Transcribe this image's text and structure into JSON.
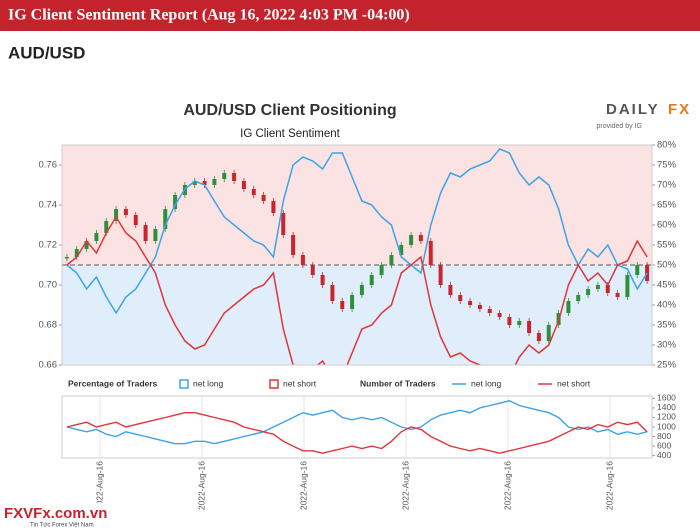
{
  "header": {
    "title": "IG Client Sentiment Report (Aug 16, 2022 4:03 PM -04:00)",
    "pair": "AUD/USD"
  },
  "brand": {
    "logo_a": "DAILY",
    "logo_b": "FX",
    "provided_by": "provided by IG"
  },
  "watermark": {
    "site": "FXVFx.com.vn",
    "tagline": "Tin Tức Forex Việt Nam"
  },
  "chart_data": [
    {
      "type": "combo",
      "title": "AUD/USD Client Positioning",
      "subtitle": "IG Client Sentiment",
      "legend_title": "Percentage of Traders",
      "price": {
        "up_color": "#2f8f3a",
        "down_color": "#c8262e",
        "values": [
          0.714,
          0.718,
          0.722,
          0.726,
          0.732,
          0.738,
          0.735,
          0.73,
          0.722,
          0.728,
          0.738,
          0.745,
          0.75,
          0.752,
          0.75,
          0.753,
          0.756,
          0.752,
          0.748,
          0.745,
          0.742,
          0.736,
          0.725,
          0.715,
          0.71,
          0.705,
          0.7,
          0.692,
          0.688,
          0.695,
          0.7,
          0.705,
          0.71,
          0.715,
          0.72,
          0.725,
          0.722,
          0.71,
          0.7,
          0.695,
          0.692,
          0.69,
          0.688,
          0.686,
          0.684,
          0.68,
          0.682,
          0.676,
          0.672,
          0.68,
          0.686,
          0.692,
          0.695,
          0.698,
          0.7,
          0.696,
          0.694,
          0.705,
          0.71,
          0.702
        ]
      },
      "ylim": [
        0.66,
        0.77
      ],
      "yticks": [
        {
          "value": 0.66,
          "label": "0.66"
        },
        {
          "value": 0.68,
          "label": "0.68"
        },
        {
          "value": 0.7,
          "label": "0.70"
        },
        {
          "value": 0.72,
          "label": "0.72"
        },
        {
          "value": 0.74,
          "label": "0.74"
        },
        {
          "value": 0.76,
          "label": "0.76"
        }
      ],
      "y2lim": [
        25,
        80
      ],
      "y2ticks": [
        {
          "value": 25,
          "label": "25%"
        },
        {
          "value": 30,
          "label": "30%"
        },
        {
          "value": 35,
          "label": "35%"
        },
        {
          "value": 40,
          "label": "40%"
        },
        {
          "value": 45,
          "label": "45%"
        },
        {
          "value": 50,
          "label": "50%"
        },
        {
          "value": 55,
          "label": "55%"
        },
        {
          "value": 60,
          "label": "60%"
        },
        {
          "value": 65,
          "label": "65%"
        },
        {
          "value": 70,
          "label": "70%"
        },
        {
          "value": 75,
          "label": "75%"
        },
        {
          "value": 80,
          "label": "80%"
        }
      ],
      "reference_line": 50,
      "series": [
        {
          "name": "net long",
          "color": "#3ea3e6",
          "axis": "y2",
          "values": [
            50,
            48,
            44,
            47,
            42,
            38,
            42,
            44,
            48,
            52,
            60,
            65,
            69,
            71,
            70,
            66,
            62,
            60,
            58,
            56,
            55,
            52,
            66,
            75,
            77,
            76,
            74,
            78,
            78,
            72,
            66,
            65,
            62,
            60,
            52,
            50,
            48,
            60,
            68,
            73,
            72,
            74,
            75,
            76,
            79,
            78,
            73,
            70,
            72,
            70,
            64,
            55,
            50,
            54,
            52,
            55,
            50,
            49,
            44,
            48
          ]
        },
        {
          "name": "net short",
          "color": "#e0353a",
          "axis": "y2",
          "values": [
            50,
            52,
            56,
            53,
            58,
            62,
            58,
            56,
            52,
            48,
            40,
            35,
            31,
            29,
            30,
            34,
            38,
            40,
            42,
            44,
            45,
            48,
            34,
            25,
            23,
            24,
            26,
            22,
            22,
            28,
            34,
            35,
            38,
            40,
            48,
            50,
            52,
            40,
            32,
            27,
            28,
            26,
            25,
            24,
            21,
            22,
            27,
            30,
            28,
            30,
            36,
            45,
            50,
            46,
            48,
            45,
            50,
            51,
            56,
            52
          ]
        }
      ]
    },
    {
      "type": "line",
      "legend_title": "Number of Traders",
      "ylim": [
        350,
        1650
      ],
      "yticks": [
        400,
        600,
        800,
        1000,
        1200,
        1400,
        1600
      ],
      "xtick_labels": [
        "2022-Aug-16",
        "2022-Aug-16",
        "2022-Aug-16",
        "2022-Aug-16",
        "2022-Aug-16",
        "2022-Aug-16"
      ],
      "series": [
        {
          "name": "net long",
          "color": "#3ea3e6",
          "values": [
            1000,
            950,
            900,
            950,
            850,
            800,
            900,
            850,
            800,
            750,
            700,
            650,
            650,
            700,
            700,
            650,
            700,
            750,
            800,
            850,
            900,
            1000,
            1100,
            1200,
            1300,
            1250,
            1300,
            1350,
            1200,
            1150,
            1200,
            1150,
            1200,
            1100,
            1000,
            950,
            1000,
            1150,
            1250,
            1300,
            1350,
            1300,
            1400,
            1450,
            1500,
            1550,
            1450,
            1400,
            1350,
            1300,
            1200,
            1000,
            950,
            1000,
            900,
            950,
            850,
            900,
            850,
            900
          ]
        },
        {
          "name": "net short",
          "color": "#e0353a",
          "values": [
            1000,
            1050,
            1100,
            1000,
            1050,
            1100,
            1000,
            1050,
            1100,
            1150,
            1200,
            1250,
            1300,
            1300,
            1250,
            1200,
            1150,
            1100,
            1000,
            950,
            900,
            850,
            700,
            600,
            500,
            500,
            450,
            500,
            550,
            600,
            550,
            600,
            550,
            700,
            900,
            1000,
            950,
            800,
            700,
            600,
            550,
            500,
            550,
            500,
            450,
            500,
            550,
            600,
            650,
            700,
            800,
            900,
            1000,
            950,
            1050,
            1000,
            1100,
            1050,
            1100,
            900
          ]
        }
      ]
    }
  ]
}
